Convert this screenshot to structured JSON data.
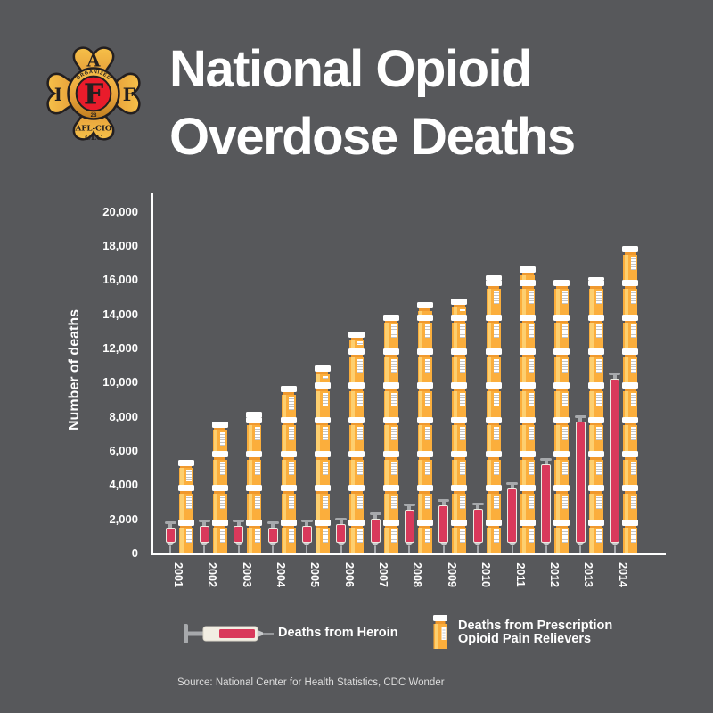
{
  "header": {
    "title_line1": "National Opioid",
    "title_line2": "Overdose Deaths"
  },
  "logo": {
    "letter_top": "A",
    "letter_left": "I",
    "letter_right": "F",
    "center_letter": "F",
    "ring_text": "ORGANIZED",
    "ring_bottom": "28",
    "bottom_line1": "AFL-CIO",
    "bottom_line2": "CLC"
  },
  "chart_data": {
    "type": "bar",
    "title": "National Opioid Overdose Deaths",
    "xlabel": "",
    "ylabel": "Number of deaths",
    "ylim": [
      0,
      20000
    ],
    "ytick_step": 2000,
    "grid": false,
    "legend_position": "bottom",
    "categories": [
      "2001",
      "2002",
      "2003",
      "2004",
      "2005",
      "2006",
      "2007",
      "2008",
      "2009",
      "2010",
      "2011",
      "2012",
      "2013",
      "2014"
    ],
    "series": [
      {
        "name": "Deaths from Heroin",
        "icon": "syringe",
        "color": "#D9395B",
        "values": [
          1900,
          2000,
          2000,
          1900,
          2000,
          2100,
          2400,
          2900,
          3200,
          3000,
          4200,
          5600,
          8100,
          10600
        ]
      },
      {
        "name": "Deaths from Prescription Opioid Pain Relievers",
        "icon": "pill-bottle",
        "color": "#FBAE3C",
        "values": [
          5500,
          7700,
          8300,
          9800,
          11000,
          13000,
          14000,
          14700,
          14900,
          16300,
          16800,
          16000,
          16200,
          18000
        ]
      }
    ]
  },
  "legend": {
    "heroin_label": "Deaths from Heroin",
    "rx_label_line1": "Deaths from Prescription",
    "rx_label_line2": "Opioid Pain Relievers"
  },
  "source": "Source: National Center for Health Statistics, CDC Wonder",
  "colors": {
    "background": "#57585B",
    "bar_yellow": "#FBAE3C",
    "bar_yellow_light": "#FDCF6F",
    "bottle_neck_orange": "#F0992E",
    "syringe_red": "#D9395B",
    "metal_gray": "#A7A9AC",
    "axis_white": "#FFFFFF",
    "label_gray": "#DDDDDD",
    "logo_gold": "#E8A33B",
    "logo_red": "#E91C2B"
  }
}
